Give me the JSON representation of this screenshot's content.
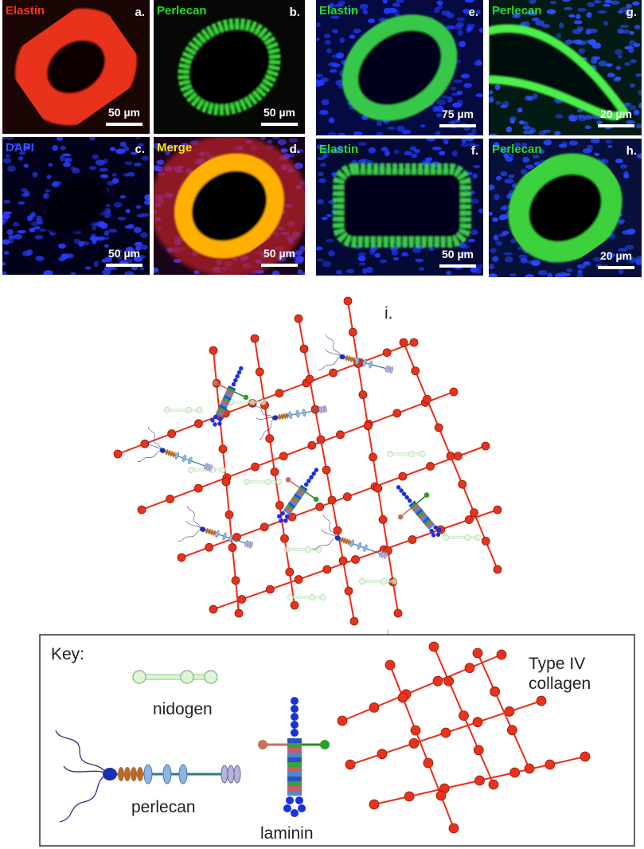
{
  "panels": [
    {
      "letter": "a.",
      "stain": "Elastin",
      "scale": "50 µm"
    },
    {
      "letter": "b.",
      "stain": "Perlecan",
      "scale": "50 µm"
    },
    {
      "letter": "c.",
      "stain": "DAPI",
      "scale": "50 µm"
    },
    {
      "letter": "d.",
      "stain": "Merge",
      "scale": "50 µm"
    },
    {
      "letter": "e.",
      "stain": "Elastin",
      "scale": "75 µm"
    },
    {
      "letter": "f.",
      "stain": "Elastin",
      "scale": "50 µm"
    },
    {
      "letter": "g.",
      "stain": "Perlecan",
      "scale": "20 µm"
    },
    {
      "letter": "h.",
      "stain": "Perlecan",
      "scale": "20 µm"
    }
  ],
  "diagram": {
    "label": "i."
  },
  "key": {
    "title": "Key:",
    "nidogen": "nidogen",
    "perlecan": "perlecan",
    "laminin": "laminin",
    "collagen": [
      "Type IV",
      "collagen"
    ]
  }
}
